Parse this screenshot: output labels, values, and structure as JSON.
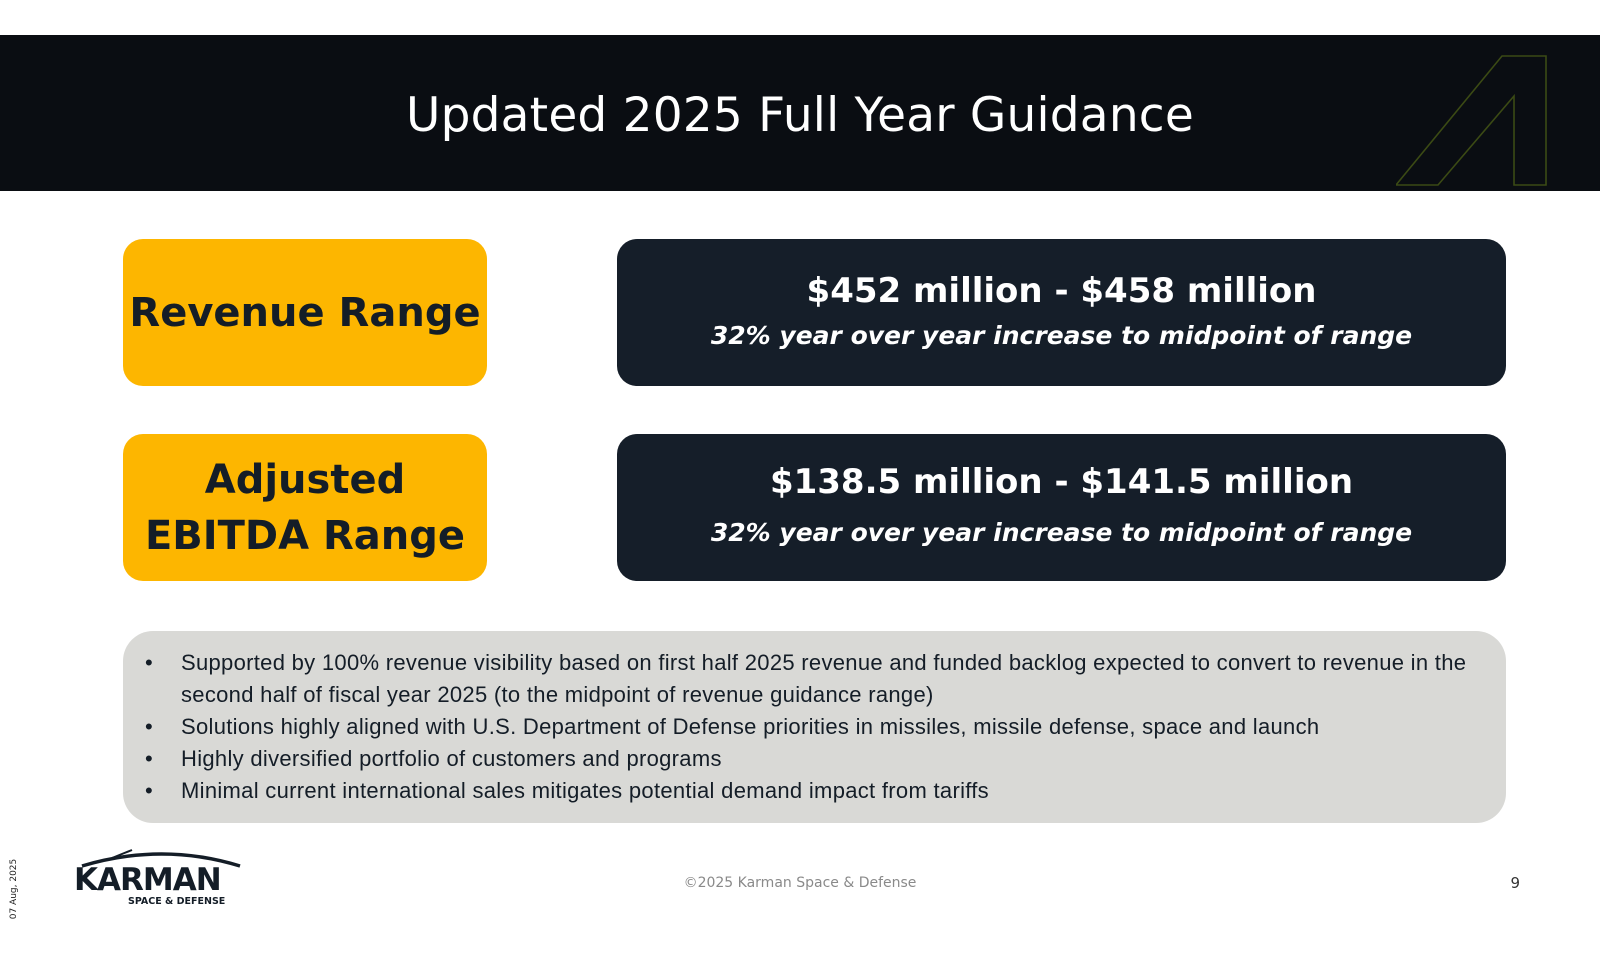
{
  "header": {
    "title": "Updated 2025 Full Year Guidance"
  },
  "guidance": [
    {
      "label": "Revenue Range",
      "value": "$452 million - $458 million",
      "note": "32% year over year increase to midpoint of range"
    },
    {
      "label_line1": "Adjusted",
      "label_line2": "EBITDA Range",
      "value": "$138.5 million - $141.5 million",
      "note": "32% year over year increase to midpoint of range"
    }
  ],
  "notes": [
    "Supported by 100% revenue visibility based on first half 2025 revenue and funded backlog expected to convert to revenue in the second half of fiscal year 2025 (to the midpoint of revenue guidance range)",
    "Solutions highly aligned with U.S. Department of Defense priorities in missiles, missile defense, space and launch",
    "Highly diversified portfolio of customers and programs",
    "Minimal current international sales mitigates potential demand impact from tariffs"
  ],
  "footer": {
    "date": "07 Aug, 2025",
    "copyright": "©2025 Karman Space & Defense",
    "page_number": "9",
    "logo_text": "KARMAN",
    "logo_subtext": "SPACE & DEFENSE"
  },
  "colors": {
    "header_bg": "#0a0d12",
    "label_bg": "#fdb600",
    "value_bg": "#151e29",
    "notes_bg": "#d9d9d6",
    "accent_outline": "#3b4a14"
  },
  "icons": {
    "brand_mark": "karman-a-outline-icon",
    "bullet": "bullet-dot"
  }
}
